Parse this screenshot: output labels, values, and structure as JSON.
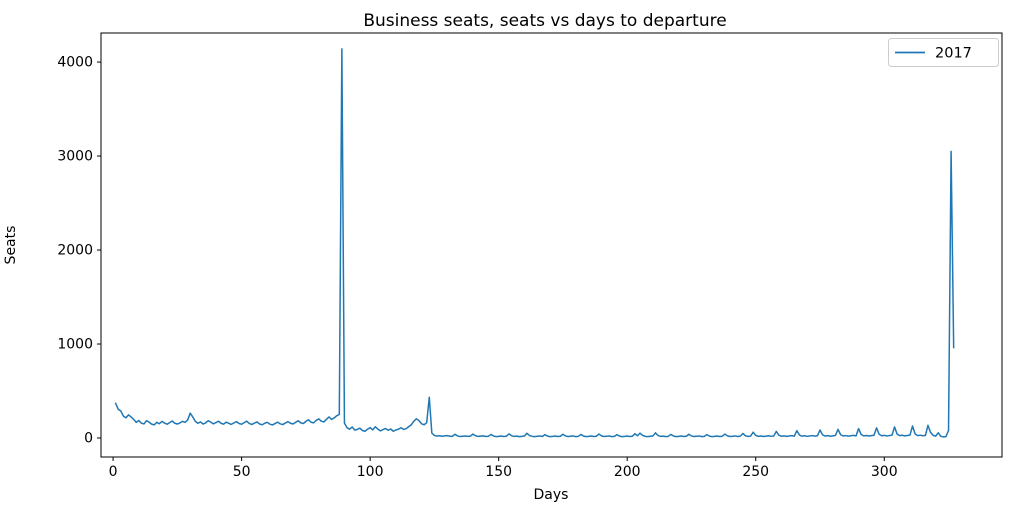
{
  "figure": {
    "background": "#ffffff",
    "text_color": "#000000",
    "spine_color": "#000000"
  },
  "chart_data": {
    "type": "line",
    "title": "Business seats, seats vs days to departure",
    "xlabel": "Days",
    "ylabel": "Seats",
    "xlim": [
      -4.7,
      345.8
    ],
    "ylim": [
      -202,
      4309
    ],
    "x_ticks": [
      0,
      50,
      100,
      150,
      200,
      250,
      300
    ],
    "y_ticks": [
      0,
      1000,
      2000,
      3000,
      4000
    ],
    "grid": false,
    "legend": {
      "position": "upper right",
      "entries": [
        "2017"
      ],
      "edge_color": "#cccccc",
      "face_color": "#ffffff"
    },
    "series": [
      {
        "name": "2017",
        "color": "#1f77b4",
        "line_width": 1.5,
        "x_start": 1,
        "x_step": 1,
        "values": [
          370,
          305,
          288,
          234,
          214,
          246,
          224,
          199,
          166,
          186,
          158,
          150,
          184,
          169,
          148,
          140,
          167,
          152,
          177,
          159,
          147,
          164,
          181,
          157,
          149,
          161,
          177,
          167,
          191,
          264,
          224,
          177,
          157,
          171,
          149,
          161,
          184,
          169,
          151,
          164,
          179,
          157,
          147,
          169,
          157,
          145,
          161,
          174,
          154,
          147,
          164,
          179,
          154,
          144,
          159,
          171,
          149,
          141,
          157,
          167,
          147,
          139,
          154,
          169,
          151,
          143,
          159,
          174,
          157,
          149,
          167,
          184,
          161,
          154,
          177,
          194,
          169,
          161,
          187,
          204,
          179,
          171,
          199,
          224,
          197,
          214,
          237,
          251,
          4140,
          158,
          110,
          94,
          117,
          85,
          91,
          105,
          80,
          72,
          94,
          111,
          86,
          119,
          95,
          76,
          90,
          101,
          82,
          96,
          72,
          85,
          94,
          109,
          92,
          99,
          121,
          141,
          179,
          204,
          186,
          151,
          141,
          163,
          434,
          52,
          27,
          21,
          24,
          19,
          23,
          25,
          20,
          18,
          40,
          22,
          16,
          19,
          22,
          17,
          20,
          42,
          24,
          17,
          20,
          23,
          16,
          19,
          38,
          21,
          15,
          18,
          21,
          16,
          19,
          44,
          25,
          17,
          20,
          15,
          18,
          21,
          50,
          26,
          18,
          15,
          19,
          22,
          16,
          36,
          20,
          15,
          18,
          21,
          16,
          19,
          40,
          22,
          16,
          19,
          22,
          15,
          18,
          38,
          21,
          15,
          18,
          21,
          16,
          19,
          42,
          23,
          16,
          19,
          22,
          15,
          18,
          36,
          20,
          15,
          18,
          21,
          16,
          19,
          45,
          24,
          52,
          28,
          18,
          15,
          19,
          22,
          55,
          27,
          17,
          20,
          15,
          18,
          38,
          21,
          15,
          18,
          21,
          16,
          19,
          40,
          22,
          16,
          19,
          22,
          15,
          18,
          36,
          20,
          15,
          18,
          21,
          16,
          19,
          42,
          23,
          16,
          19,
          22,
          16,
          20,
          48,
          24,
          17,
          20,
          62,
          28,
          18,
          21,
          16,
          20,
          24,
          18,
          22,
          70,
          30,
          19,
          23,
          17,
          21,
          25,
          19,
          78,
          32,
          20,
          24,
          18,
          22,
          26,
          20,
          24,
          85,
          34,
          21,
          25,
          19,
          23,
          27,
          92,
          36,
          22,
          26,
          20,
          24,
          28,
          22,
          100,
          38,
          23,
          27,
          21,
          25,
          29,
          108,
          40,
          24,
          28,
          22,
          26,
          30,
          118,
          42,
          25,
          29,
          23,
          27,
          31,
          128,
          44,
          26,
          30,
          24,
          28,
          135,
          60,
          28,
          20,
          55,
          18,
          12,
          15,
          80,
          3050,
          960
        ]
      }
    ]
  }
}
